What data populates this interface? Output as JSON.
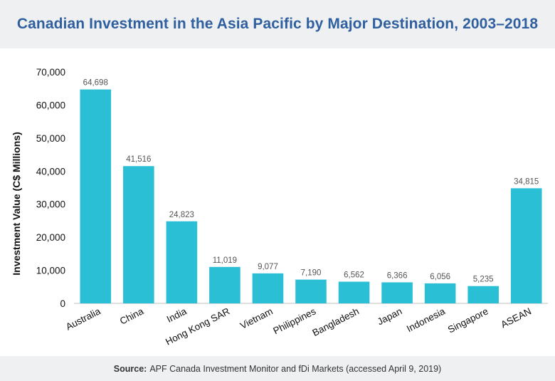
{
  "header": {
    "title": "Canadian Investment in the Asia Pacific by Major Destination, 2003–2018"
  },
  "footer": {
    "source_label": "Source:",
    "source_text": "APF Canada Investment Monitor and fDi Markets (accessed April 9, 2019)"
  },
  "chart_data": {
    "type": "bar",
    "categories": [
      "Australia",
      "China",
      "India",
      "Hong Kong SAR",
      "Vietnam",
      "Philippines",
      "Bangladesh",
      "Japan",
      "Indonesia",
      "Singapore",
      "ASEAN"
    ],
    "values": [
      64698,
      41516,
      24823,
      11019,
      9077,
      7190,
      6562,
      6366,
      6056,
      5235,
      34815
    ],
    "value_labels": [
      "64,698",
      "41,516",
      "24,823",
      "11,019",
      "9,077",
      "7,190",
      "6,562",
      "6,366",
      "6,056",
      "5,235",
      "34,815"
    ],
    "ylabel": "Investment Value (C$ Millions)",
    "ylim": [
      0,
      70000
    ],
    "yticks": [
      0,
      10000,
      20000,
      30000,
      40000,
      50000,
      60000,
      70000
    ],
    "ytick_labels": [
      "0",
      "10,000",
      "20,000",
      "30,000",
      "40,000",
      "50,000",
      "60,000",
      "70,000"
    ],
    "grid": false,
    "bar_color": "#2bbfd6"
  }
}
